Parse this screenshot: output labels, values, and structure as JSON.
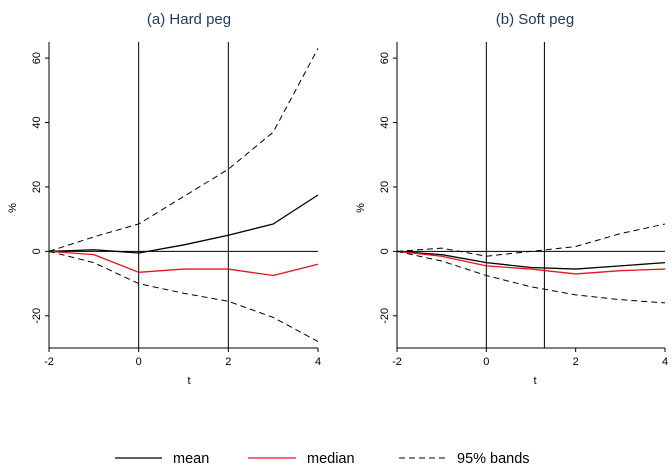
{
  "colors": {
    "mean": "#000000",
    "median": "#e8141b",
    "bands": "#000000",
    "title": "#1f3a5c"
  },
  "legend": {
    "mean": "mean",
    "median": "median",
    "bands": "95% bands"
  },
  "chart_data": [
    {
      "type": "line",
      "title": "(a) Hard peg",
      "xlabel": "t",
      "ylabel": "%",
      "xlim": [
        -2,
        4
      ],
      "ylim": [
        -30,
        65
      ],
      "xticks": [
        -2,
        0,
        2,
        4
      ],
      "yticks": [
        -20,
        0,
        20,
        40,
        60
      ],
      "vlines": [
        0,
        2
      ],
      "hline": 0,
      "x": [
        -2,
        -1,
        0,
        1,
        2,
        3,
        4
      ],
      "series": [
        {
          "name": "mean",
          "style": "solid",
          "color": "#000000",
          "values": [
            0,
            0.5,
            -0.5,
            2,
            5,
            8.5,
            17.5
          ]
        },
        {
          "name": "median",
          "style": "solid",
          "color": "#e8141b",
          "values": [
            0,
            -1,
            -6.5,
            -5.5,
            -5.5,
            -7.5,
            -4
          ]
        },
        {
          "name": "95% bands",
          "style": "dashed",
          "color": "#000000",
          "values": [
            0,
            4.5,
            8.5,
            17,
            25.5,
            37,
            63
          ]
        },
        {
          "name": "95% bands",
          "style": "dashed",
          "color": "#000000",
          "values": [
            0,
            -3.5,
            -10,
            -13,
            -15.5,
            -20.5,
            -28
          ]
        }
      ]
    },
    {
      "type": "line",
      "title": "(b) Soft peg",
      "xlabel": "t",
      "ylabel": "%",
      "xlim": [
        -2,
        4
      ],
      "ylim": [
        -30,
        65
      ],
      "xticks": [
        -2,
        0,
        2,
        4
      ],
      "yticks": [
        -20,
        0,
        20,
        40,
        60
      ],
      "vlines": [
        0,
        1.3
      ],
      "hline": 0,
      "x": [
        -2,
        -1,
        0,
        1,
        2,
        3,
        4
      ],
      "series": [
        {
          "name": "mean",
          "style": "solid",
          "color": "#000000",
          "values": [
            0,
            -1,
            -3.5,
            -5,
            -5.5,
            -4.5,
            -3.5
          ]
        },
        {
          "name": "median",
          "style": "solid",
          "color": "#e8141b",
          "values": [
            0,
            -1.5,
            -4.5,
            -5.5,
            -7,
            -6,
            -5.5
          ]
        },
        {
          "name": "95% bands",
          "style": "dashed",
          "color": "#000000",
          "values": [
            0,
            1,
            -1.5,
            0,
            1.5,
            5.5,
            8.5
          ]
        },
        {
          "name": "95% bands",
          "style": "dashed",
          "color": "#000000",
          "values": [
            0,
            -3,
            -7.5,
            -11,
            -13.5,
            -15,
            -16
          ]
        }
      ]
    }
  ]
}
